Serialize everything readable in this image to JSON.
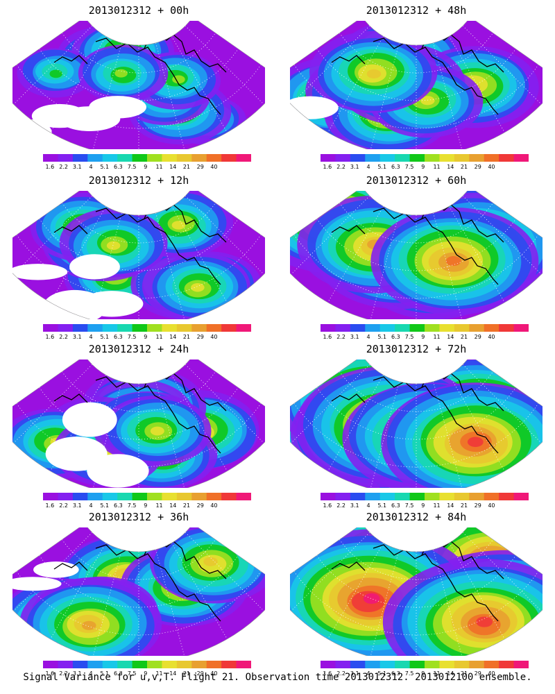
{
  "panels": [
    {
      "title": "2013012312 + 00h",
      "intensity": 0.35,
      "blank": 0.55
    },
    {
      "title": "2013012312 + 48h",
      "intensity": 0.55,
      "blank": 0.15
    },
    {
      "title": "2013012312 + 12h",
      "intensity": 0.45,
      "blank": 0.45
    },
    {
      "title": "2013012312 + 60h",
      "intensity": 0.7,
      "blank": 0.0
    },
    {
      "title": "2013012312 + 24h",
      "intensity": 0.5,
      "blank": 0.35
    },
    {
      "title": "2013012312 + 72h",
      "intensity": 0.78,
      "blank": 0.0
    },
    {
      "title": "2013012312 + 36h",
      "intensity": 0.55,
      "blank": 0.25
    },
    {
      "title": "2013012312 + 84h",
      "intensity": 0.88,
      "blank": 0.0
    }
  ],
  "colorbar": {
    "labels": [
      "1.6",
      "2.2",
      "3.1",
      "4",
      "5.1",
      "6.3",
      "7.5",
      "9",
      "11",
      "14",
      "21",
      "29",
      "40"
    ],
    "colors": [
      "#9a10e0",
      "#8420f0",
      "#2a4cf0",
      "#1ea0f0",
      "#18c8e8",
      "#18d8b0",
      "#10c818",
      "#a0e020",
      "#e8e030",
      "#e8c830",
      "#e8a030",
      "#f07028",
      "#f03838",
      "#f01878"
    ]
  },
  "caption": "Signal Variance for u,v,T. Flight 21. Observation time 2013012312. 2013012100 ensemble."
}
